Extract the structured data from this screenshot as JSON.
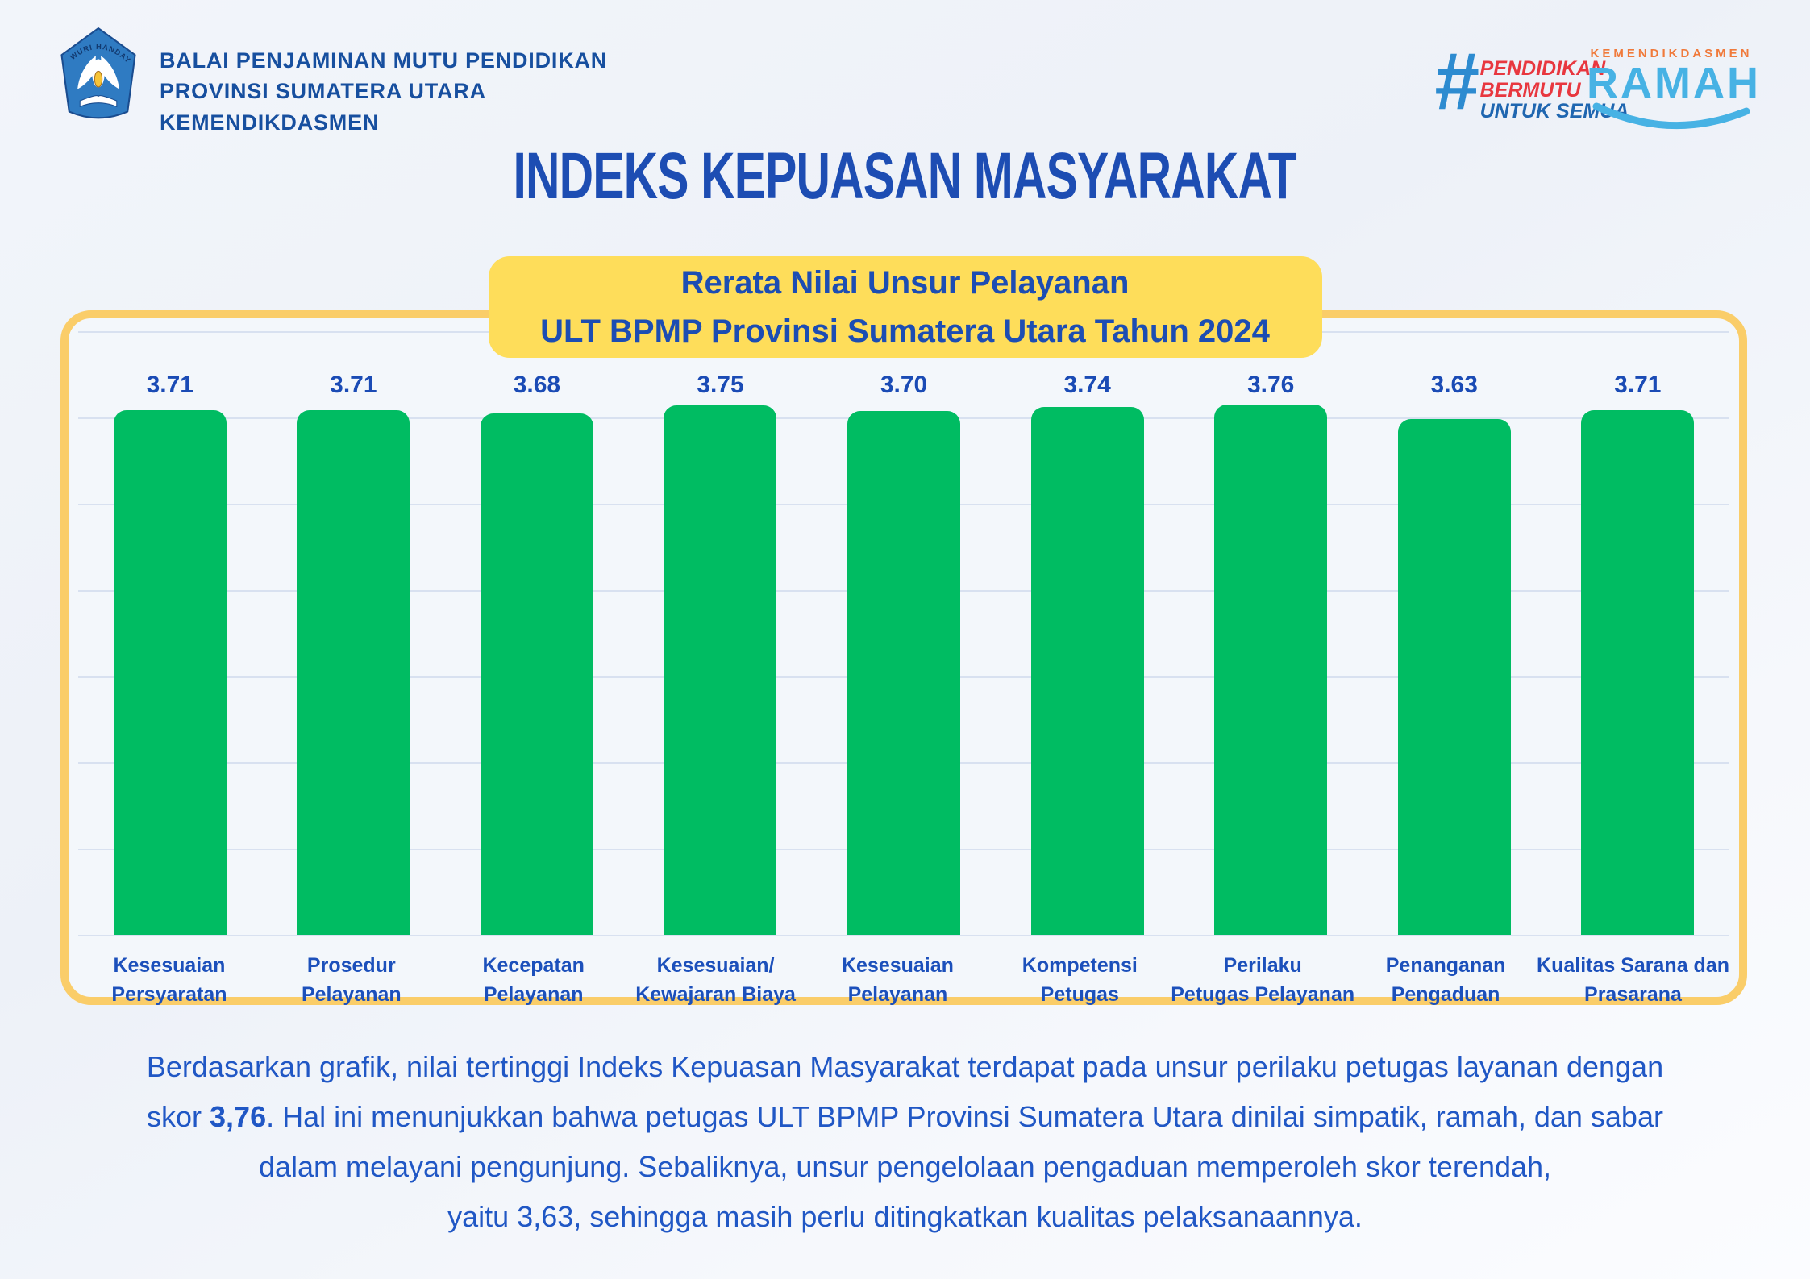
{
  "title": "INDEKS KEPUASAN MASYARAKAT",
  "header": {
    "institution_lines": [
      "BALAI PENJAMINAN MUTU PENDIDIKAN",
      "PROVINSI SUMATERA UTARA",
      "KEMENDIKDASMEN"
    ],
    "logo_motto": "TUT WURI HANDAYANI",
    "campaign": {
      "hash": "#",
      "lines": [
        "PENDIDIKAN",
        "BERMUTU",
        "UNTUK SEMUA"
      ]
    },
    "ramah": {
      "top": "KEMENDIKDASMEN",
      "main": "RAMAH"
    }
  },
  "subtitle": {
    "line1": "Rerata Nilai Unsur Pelayanan",
    "line2": "ULT BPMP Provinsi Sumatera Utara Tahun 2024"
  },
  "chart_data": {
    "type": "bar",
    "title": "Rerata Nilai Unsur Pelayanan ULT BPMP Provinsi Sumatera Utara Tahun 2024",
    "categories": [
      "Kesesuaian\nPersyaratan",
      "Prosedur\nPelayanan",
      "Kecepatan\nPelayanan",
      "Kesesuaian/\nKewajaran Biaya",
      "Kesesuaian\nPelayanan",
      "Kompetensi\nPetugas",
      "Perilaku\nPetugas Pelayanan",
      "Penanganan\nPengaduan",
      "Kualitas Sarana dan\nPrasarana"
    ],
    "values": [
      3.71,
      3.71,
      3.68,
      3.75,
      3.7,
      3.74,
      3.76,
      3.63,
      3.71
    ],
    "value_labels": [
      "3.71",
      "3.71",
      "3.68",
      "3.75",
      "3.70",
      "3.74",
      "3.76",
      "3.63",
      "3.71"
    ],
    "xlabel": "",
    "ylabel": "",
    "ylim": [
      0,
      4
    ],
    "grid": true,
    "legend_position": "none",
    "bar_color": "#00bc62",
    "value_label_color": "#1a4bb5",
    "category_label_color": "#1c50bb"
  },
  "analysis": {
    "lines": [
      [
        {
          "t": "Berdasarkan grafik, nilai tertinggi Indeks Kepuasan Masyarakat terdapat pada unsur perilaku petugas layanan dengan"
        }
      ],
      [
        {
          "t": "skor "
        },
        {
          "t": "3,76",
          "b": true
        },
        {
          "t": ". Hal ini menunjukkan bahwa petugas ULT BPMP Provinsi Sumatera Utara dinilai simpatik, ramah, dan sabar"
        }
      ],
      [
        {
          "t": "dalam melayani pengunjung. Sebaliknya, unsur pengelolaan pengaduan memperoleh skor terendah,"
        }
      ],
      [
        {
          "t": "yaitu 3,63, sehingga masih perlu ditingkatkan kualitas pelaksanaannya."
        }
      ]
    ]
  },
  "colors": {
    "bar_green": "#00bc62",
    "card_border_yellow": "#facd69",
    "subtitle_yellow": "#fedd5a",
    "title_blue": "#1d4db3",
    "body_blue": "#2057c5",
    "header_blue": "#174f9f",
    "gridline": "#d8e1f0",
    "campaign_red": "#e8373f",
    "campaign_blue": "#1f66b0",
    "ramah_blue": "#47b2e4",
    "ramah_orange": "#f07a3b"
  }
}
